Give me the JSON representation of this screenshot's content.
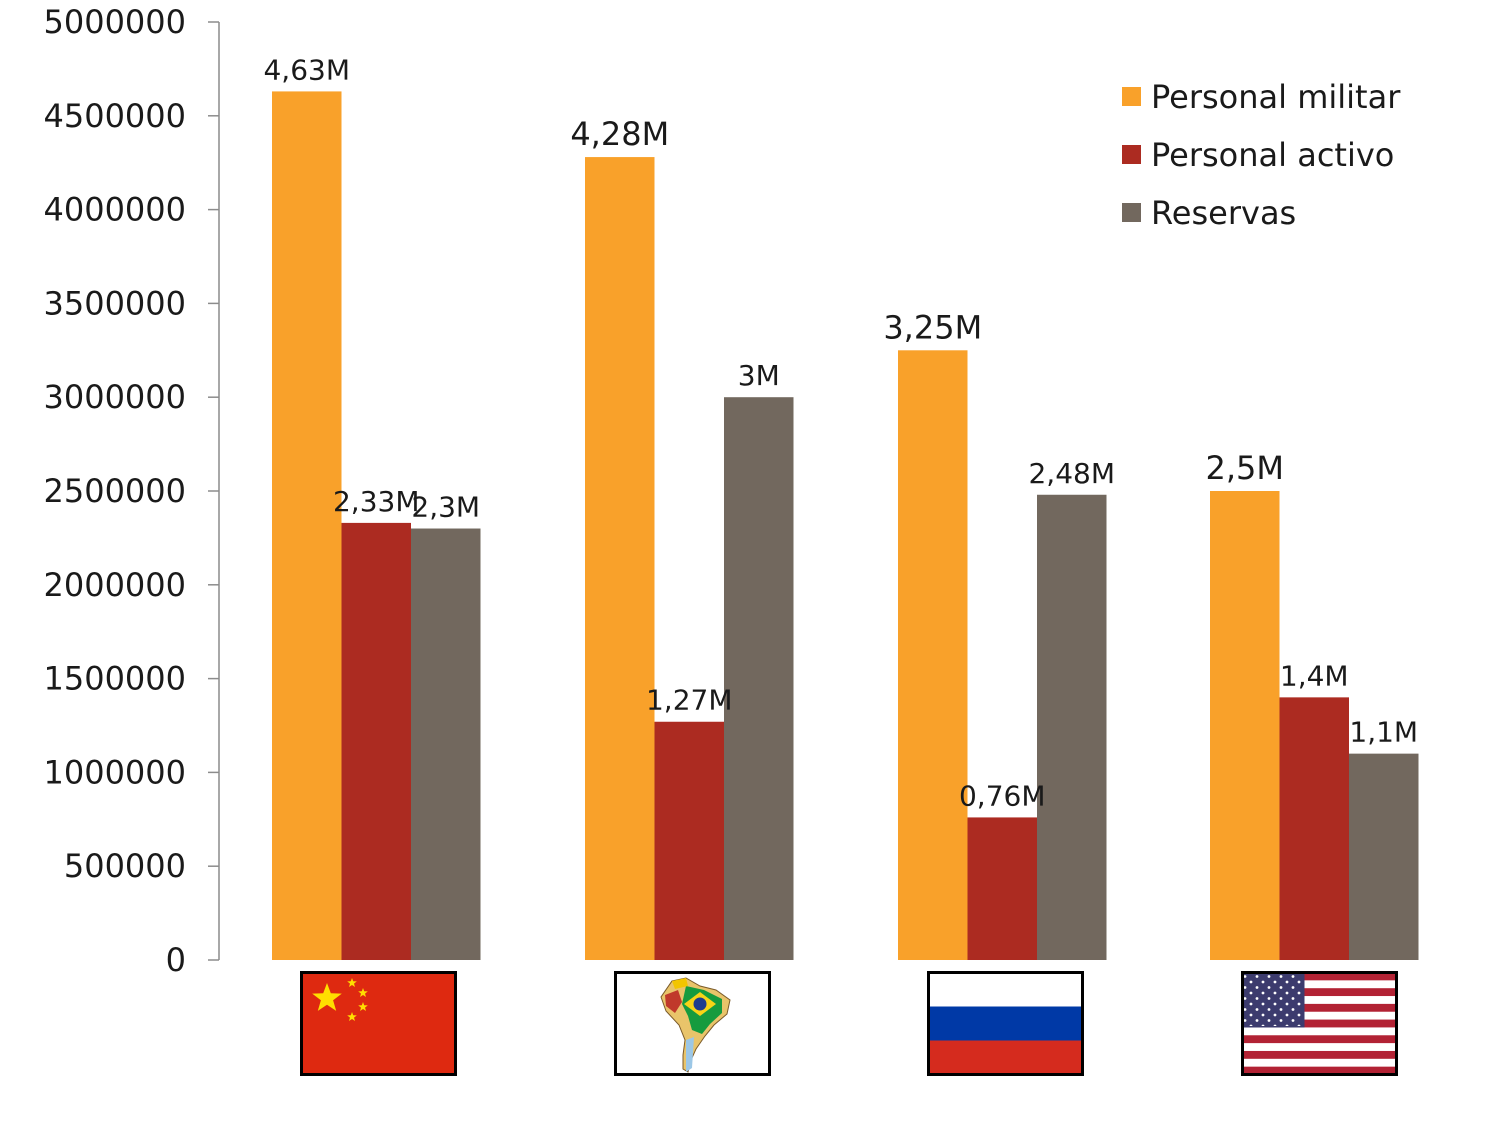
{
  "chart_data": {
    "type": "bar",
    "title": "",
    "xlabel": "",
    "ylabel": "",
    "ylim": [
      0,
      5000000
    ],
    "yticks": [
      "0",
      "500000",
      "1000000",
      "1500000",
      "2000000",
      "2500000",
      "3000000",
      "3500000",
      "4000000",
      "4500000",
      "5000000"
    ],
    "grid": false,
    "legend_position": "top-right",
    "categories": [
      "China",
      "Latinoamérica",
      "Rusia",
      "Estados Unidos"
    ],
    "category_icons": [
      "china-flag-icon",
      "south-america-map-icon",
      "russia-flag-icon",
      "usa-flag-icon"
    ],
    "series": [
      {
        "name": "Personal militar",
        "color": "#F9A12A",
        "values": [
          4630000,
          4280000,
          3250000,
          2500000
        ],
        "labels": [
          "4,63M",
          "4,28M",
          "3,25M",
          "2,5M"
        ]
      },
      {
        "name": "Personal activo",
        "color": "#AC2B21",
        "values": [
          2330000,
          1270000,
          760000,
          1400000
        ],
        "labels": [
          "2,33M",
          "1,27M",
          "0,76M",
          "1,4M"
        ]
      },
      {
        "name": "Reservas",
        "color": "#72685E",
        "values": [
          2300000,
          3000000,
          2480000,
          1100000
        ],
        "labels": [
          "2,3M",
          "3M",
          "2,48M",
          "1,1M"
        ]
      }
    ]
  }
}
